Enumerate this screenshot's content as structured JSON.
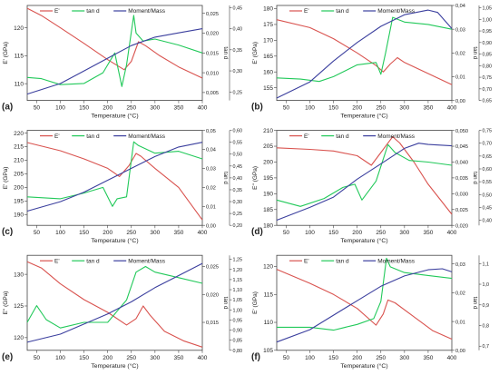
{
  "colors": {
    "E": "#d9534f",
    "tand": "#22c95a",
    "mm": "#3b3f9e",
    "axis": "#333333"
  },
  "chart_data": [
    {
      "panel_label": "(a)",
      "type": "line",
      "xlabel": "Temperature (°C)",
      "xlim": [
        30,
        400
      ],
      "xticks": [
        50,
        100,
        150,
        200,
        250,
        300,
        350,
        400
      ],
      "y1": {
        "label": "E' (GPa)",
        "ticks": [
          110,
          115,
          120
        ],
        "range": [
          107,
          124
        ]
      },
      "y2": {
        "label": "tan d",
        "ticks": [
          "0,005",
          "0,010",
          "0,015",
          "0,020",
          "0,025"
        ],
        "range": [
          0.003,
          0.027
        ]
      },
      "y3": {
        "label": "Moment/Mass (emu/g)",
        "ticks": [
          "0,25",
          "0,30",
          "0,35",
          "0,40",
          "0,45"
        ],
        "range": [
          0.23,
          0.455
        ]
      },
      "legend": [
        "E'",
        "tan d",
        "Moment/Mass"
      ],
      "series": [
        {
          "name": "E'",
          "axis": "y1",
          "x": [
            30,
            60,
            100,
            150,
            200,
            235,
            250,
            265,
            280,
            310,
            350,
            400
          ],
          "y": [
            123.5,
            122.2,
            120.0,
            117.2,
            114.3,
            112.5,
            114.0,
            117.5,
            116.8,
            115.0,
            113.0,
            111.0
          ]
        },
        {
          "name": "tan d",
          "axis": "y2",
          "x": [
            30,
            60,
            100,
            150,
            190,
            215,
            230,
            240,
            255,
            260,
            275,
            300,
            350,
            400
          ],
          "y": [
            0.0088,
            0.0085,
            0.007,
            0.0073,
            0.01,
            0.015,
            0.0065,
            0.012,
            0.0245,
            0.02,
            0.018,
            0.0185,
            0.017,
            0.015
          ]
        },
        {
          "name": "Moment/Mass",
          "axis": "y3",
          "x": [
            30,
            100,
            150,
            200,
            250,
            300,
            350,
            400
          ],
          "y": [
            0.245,
            0.27,
            0.3,
            0.33,
            0.36,
            0.38,
            0.39,
            0.4
          ]
        }
      ]
    },
    {
      "panel_label": "(b)",
      "type": "line",
      "xlabel": "Temperature (°C)",
      "xlim": [
        30,
        400
      ],
      "xticks": [
        50,
        100,
        150,
        200,
        250,
        300,
        350,
        400
      ],
      "y1": {
        "label": "E' (GPa)",
        "ticks": [
          155,
          160,
          165,
          170,
          175,
          180
        ],
        "range": [
          151,
          181
        ]
      },
      "y2": {
        "label": "tan d",
        "ticks": [
          "0,00",
          "0,01",
          "0,02",
          "0,03",
          "0,04"
        ],
        "range": [
          0.0,
          0.04
        ]
      },
      "y3": {
        "label": "Moment/Mass (emu/g)",
        "ticks": [
          "0,65",
          "0,70",
          "0,75",
          "0,80",
          "0,85",
          "0,90",
          "0,95",
          "1,00",
          "1,05"
        ],
        "range": [
          0.65,
          1.06
        ]
      },
      "legend": [
        "E'",
        "tan d",
        "Moment/Mass"
      ],
      "series": [
        {
          "name": "E'",
          "axis": "y1",
          "x": [
            30,
            100,
            150,
            200,
            240,
            255,
            270,
            285,
            300,
            350,
            400
          ],
          "y": [
            176.5,
            174.0,
            170.5,
            166.0,
            162.0,
            160.0,
            162.5,
            164.5,
            163.0,
            159.5,
            156.0
          ]
        },
        {
          "name": "tan d",
          "axis": "y2",
          "x": [
            30,
            80,
            120,
            150,
            200,
            240,
            250,
            260,
            275,
            300,
            350,
            400
          ],
          "y": [
            0.0095,
            0.009,
            0.008,
            0.01,
            0.015,
            0.016,
            0.011,
            0.02,
            0.035,
            0.033,
            0.032,
            0.03
          ]
        },
        {
          "name": "Moment/Mass",
          "axis": "y3",
          "x": [
            30,
            100,
            150,
            200,
            250,
            300,
            350,
            370,
            400
          ],
          "y": [
            0.66,
            0.73,
            0.82,
            0.9,
            0.97,
            1.02,
            1.04,
            1.03,
            0.96
          ]
        }
      ]
    },
    {
      "panel_label": "(c)",
      "type": "line",
      "xlabel": "Temperature (°C)",
      "xlim": [
        30,
        400
      ],
      "xticks": [
        50,
        100,
        150,
        200,
        250,
        300,
        350,
        400
      ],
      "y1": {
        "label": "E' (GPa)",
        "ticks": [
          190,
          195,
          200,
          205,
          210,
          215,
          220
        ],
        "range": [
          186,
          221
        ]
      },
      "y2": {
        "label": "tan d",
        "ticks": [
          "0,00",
          "0,01",
          "0,02",
          "0,03",
          "0,04",
          "0,05"
        ],
        "range": [
          0.0,
          0.05
        ]
      },
      "y3": {
        "label": "Moment/Mass (emu/g)",
        "ticks": [
          "0,20",
          "0,25",
          "0,30",
          "0,35",
          "0,40",
          "0,45",
          "0,50",
          "0,55",
          "0,60"
        ],
        "range": [
          0.2,
          0.6
        ]
      },
      "legend": [
        "E'",
        "tan d",
        "Moment/Mass"
      ],
      "series": [
        {
          "name": "E'",
          "axis": "y1",
          "x": [
            30,
            100,
            150,
            200,
            225,
            245,
            260,
            270,
            300,
            350,
            400
          ],
          "y": [
            216.5,
            213.5,
            210.5,
            207.0,
            204.0,
            208.0,
            212.5,
            211.5,
            207.0,
            200.0,
            188.0
          ]
        },
        {
          "name": "tan d",
          "axis": "y2",
          "x": [
            30,
            100,
            150,
            190,
            210,
            220,
            240,
            255,
            265,
            300,
            350,
            400
          ],
          "y": [
            0.015,
            0.014,
            0.017,
            0.02,
            0.01,
            0.014,
            0.015,
            0.044,
            0.042,
            0.038,
            0.039,
            0.035
          ]
        },
        {
          "name": "Moment/Mass",
          "axis": "y3",
          "x": [
            30,
            100,
            150,
            200,
            250,
            300,
            350,
            400
          ],
          "y": [
            0.26,
            0.3,
            0.34,
            0.39,
            0.44,
            0.49,
            0.53,
            0.55
          ]
        }
      ]
    },
    {
      "panel_label": "(d)",
      "type": "line",
      "xlabel": "Temperature (°C)",
      "xlim": [
        30,
        400
      ],
      "xticks": [
        50,
        100,
        150,
        200,
        250,
        300,
        350,
        400
      ],
      "y1": {
        "label": "E'' (GPa)",
        "ticks": [
          180,
          185,
          190,
          195,
          200,
          205,
          210
        ],
        "range": [
          180,
          210
        ]
      },
      "y2": {
        "label": "tan d",
        "ticks": [
          "0,020",
          "0,025",
          "0,030",
          "0,035",
          "0,040",
          "0,045",
          "0,050"
        ],
        "range": [
          0.02,
          0.05
        ]
      },
      "y3": {
        "label": "Moment/Mass (emu/g)",
        "ticks": [
          "0,40",
          "0,45",
          "0,50",
          "0,55",
          "0,60",
          "0,65",
          "0,70",
          "0,75"
        ],
        "range": [
          0.38,
          0.75
        ]
      },
      "legend": [
        "E'",
        "tan d",
        "Moment/Mass"
      ],
      "series": [
        {
          "name": "E'",
          "axis": "y1",
          "x": [
            30,
            100,
            150,
            200,
            230,
            250,
            275,
            290,
            320,
            350,
            400
          ],
          "y": [
            204.5,
            204.0,
            203.5,
            202.0,
            199.0,
            203.0,
            208.0,
            206.0,
            200.0,
            193.0,
            183.5
          ]
        },
        {
          "name": "tan d",
          "axis": "y2",
          "x": [
            30,
            80,
            130,
            170,
            195,
            210,
            240,
            265,
            280,
            310,
            350,
            400
          ],
          "y": [
            0.028,
            0.026,
            0.0285,
            0.032,
            0.033,
            0.028,
            0.034,
            0.0455,
            0.043,
            0.0405,
            0.04,
            0.039
          ]
        },
        {
          "name": "Moment/Mass",
          "axis": "y3",
          "x": [
            30,
            100,
            150,
            200,
            250,
            300,
            330,
            350,
            400
          ],
          "y": [
            0.4,
            0.45,
            0.49,
            0.56,
            0.62,
            0.68,
            0.7,
            0.695,
            0.69
          ]
        }
      ]
    },
    {
      "panel_label": "(e)",
      "type": "line",
      "xlabel": "Temperature (°C)",
      "xlim": [
        30,
        400
      ],
      "xticks": [
        50,
        100,
        150,
        200,
        250,
        300,
        350,
        400
      ],
      "y1": {
        "label": "E'' (GPa)",
        "ticks": [
          120,
          125,
          130
        ],
        "range": [
          118,
          133
        ]
      },
      "y2": {
        "label": "tan d",
        "ticks": [
          "0,015",
          "0,020",
          "0,025"
        ],
        "range": [
          0.01,
          0.027
        ]
      },
      "y3": {
        "label": "Moment/Mass (emu/g)",
        "ticks": [
          "0,80",
          "0,85",
          "0,90",
          "0,95",
          "1,00",
          "1,05",
          "1,10",
          "1,15",
          "1,20",
          "1,25"
        ],
        "range": [
          0.8,
          1.27
        ]
      },
      "legend": [
        "E'",
        "tan d",
        "Moment/Mass"
      ],
      "series": [
        {
          "name": "E'",
          "axis": "y1",
          "x": [
            30,
            60,
            100,
            150,
            200,
            240,
            260,
            275,
            290,
            320,
            360,
            400
          ],
          "y": [
            132.0,
            131.0,
            128.5,
            126.0,
            124.0,
            122.0,
            123.0,
            125.0,
            123.5,
            121.0,
            119.5,
            118.5
          ]
        },
        {
          "name": "tan d",
          "axis": "y2",
          "x": [
            30,
            50,
            70,
            100,
            150,
            200,
            240,
            260,
            280,
            300,
            350,
            400
          ],
          "y": [
            0.015,
            0.018,
            0.0155,
            0.014,
            0.015,
            0.015,
            0.019,
            0.024,
            0.025,
            0.024,
            0.023,
            0.022
          ]
        },
        {
          "name": "Moment/Mass",
          "axis": "y3",
          "x": [
            30,
            100,
            150,
            200,
            250,
            300,
            350,
            400
          ],
          "y": [
            0.84,
            0.88,
            0.93,
            0.98,
            1.04,
            1.11,
            1.17,
            1.23
          ]
        }
      ]
    },
    {
      "panel_label": "(f)",
      "type": "line",
      "xlabel": "Temperature (°C)",
      "xlim": [
        30,
        400
      ],
      "xticks": [
        50,
        100,
        150,
        200,
        250,
        300,
        350,
        400
      ],
      "y1": {
        "label": "E' (GPa)",
        "ticks": [
          105,
          110,
          115,
          120
        ],
        "range": [
          105,
          122
        ]
      },
      "y2": {
        "label": "tan d",
        "ticks": [
          "0,00",
          "0,01",
          "0,02",
          "0,03"
        ],
        "range": [
          0.0,
          0.033
        ]
      },
      "y3": {
        "label": "Moment/Mass (emu/g)",
        "ticks": [
          "0,7",
          "0,8",
          "0,9",
          "1,0",
          "1,1"
        ],
        "range": [
          0.68,
          1.14
        ]
      },
      "legend": [
        "E'",
        "tan d",
        "Moment/Mass"
      ],
      "series": [
        {
          "name": "E'",
          "axis": "y1",
          "x": [
            30,
            100,
            150,
            200,
            240,
            255,
            265,
            280,
            320,
            360,
            400
          ],
          "y": [
            119.5,
            117.0,
            115.0,
            112.5,
            109.5,
            111.5,
            114.0,
            113.5,
            111.0,
            108.5,
            107.0
          ]
        },
        {
          "name": "tan d",
          "axis": "y2",
          "x": [
            30,
            100,
            150,
            200,
            235,
            250,
            262,
            270,
            300,
            350,
            400
          ],
          "y": [
            0.008,
            0.008,
            0.007,
            0.009,
            0.011,
            0.017,
            0.032,
            0.029,
            0.027,
            0.026,
            0.025
          ]
        },
        {
          "name": "Moment/Mass",
          "axis": "y3",
          "x": [
            30,
            100,
            150,
            200,
            250,
            300,
            350,
            380,
            400
          ],
          "y": [
            0.72,
            0.78,
            0.85,
            0.92,
            0.99,
            1.04,
            1.07,
            1.075,
            1.06
          ]
        }
      ]
    }
  ]
}
